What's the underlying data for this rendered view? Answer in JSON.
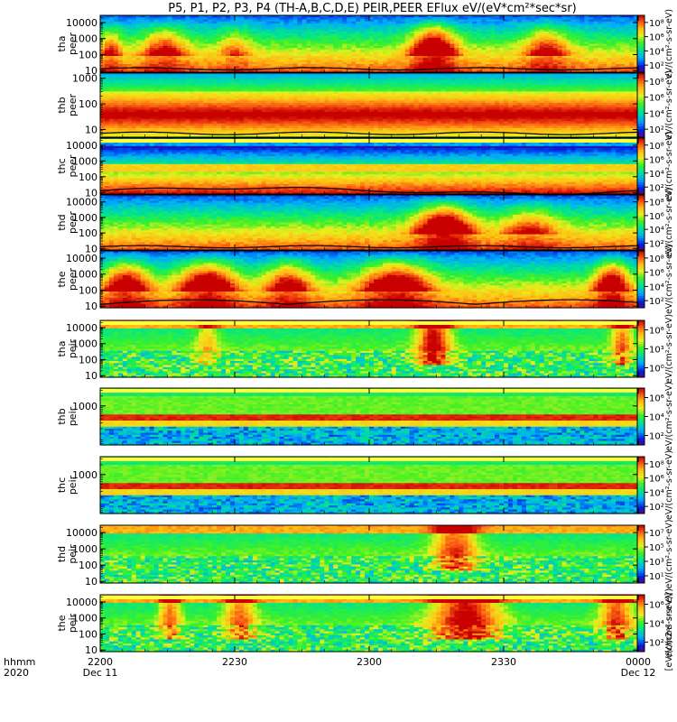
{
  "title": "P5, P1, P2, P3, P4 (TH-A,B,C,D,E) PEIR,PEER EFlux eV/(eV*cm²*sec*sr)",
  "chart_data": {
    "type": "heatmap",
    "title": "P5, P1, P2, P3, P4 (TH-A,B,C,D,E) PEIR,PEER EFlux eV/(eV*cm²*sec*sr)",
    "x_axis": {
      "label_rows": [
        "hhmm",
        "2020"
      ],
      "range": [
        "2020-12-11 22:00",
        "2020-12-12 00:00"
      ],
      "ticks": [
        {
          "hhmm": "2200",
          "date": "Dec 11"
        },
        {
          "hhmm": "2230",
          "date": ""
        },
        {
          "hhmm": "2300",
          "date": ""
        },
        {
          "hhmm": "2330",
          "date": ""
        },
        {
          "hhmm": "0000",
          "date": "Dec 12"
        }
      ]
    },
    "y_scale": "log",
    "colorbar_scale": "log",
    "colorbar_unit": "[eV/(cm2-s-sr-eV)]",
    "panels": [
      {
        "probe": "tha",
        "species": "peer",
        "ylabel": [
          "tha",
          "peer"
        ],
        "yticks": [
          "10",
          "100",
          "1000",
          "10000"
        ],
        "cbticks": [
          "10²",
          "10⁴",
          "10⁶",
          "10⁸"
        ],
        "cb_unit": "eV/(cm²-s-sr-eV)",
        "has_bound": true
      },
      {
        "probe": "thb",
        "species": "peer",
        "ylabel": [
          "thb",
          "peer"
        ],
        "yticks": [
          "10",
          "100",
          "1000"
        ],
        "cbticks": [
          "10²",
          "10⁴",
          "10⁶",
          "10⁸"
        ],
        "cb_unit": "eV/(cm²-s-sr-eV)",
        "has_bound": true
      },
      {
        "probe": "thc",
        "species": "peer",
        "ylabel": [
          "thc",
          "peer"
        ],
        "yticks": [
          "10",
          "100",
          "1000",
          "10000"
        ],
        "cbticks": [
          "10²",
          "10⁴",
          "10⁶",
          "10⁸"
        ],
        "cb_unit": "eV/(cm²-s-sr-eV)",
        "has_bound": true
      },
      {
        "probe": "thd",
        "species": "peer",
        "ylabel": [
          "thd",
          "peer"
        ],
        "yticks": [
          "10",
          "100",
          "1000",
          "10000"
        ],
        "cbticks": [
          "10²",
          "10⁴",
          "10⁶",
          "10⁸"
        ],
        "cb_unit": "eV/(cm²-s-sr-eV)",
        "has_bound": true
      },
      {
        "probe": "the",
        "species": "peer",
        "ylabel": [
          "the",
          "peer"
        ],
        "yticks": [
          "10",
          "100",
          "1000",
          "10000"
        ],
        "cbticks": [
          "10²",
          "10⁴",
          "10⁶",
          "10⁸"
        ],
        "cb_unit": "eV/(cm²-s-sr-eV)",
        "has_bound": true
      },
      {
        "probe": "tha",
        "species": "peir",
        "ylabel": [
          "tha",
          "peir"
        ],
        "yticks": [
          "10",
          "100",
          "1000",
          "10000"
        ],
        "cbticks": [
          "10⁰",
          "10³",
          "10⁶"
        ],
        "cb_unit": "eV/(cm²-s-sr-eV)",
        "has_bound": false
      },
      {
        "probe": "thb",
        "species": "peir",
        "ylabel": [
          "thb",
          "peir"
        ],
        "yticks": [
          "1000"
        ],
        "cbticks": [
          "10²",
          "10⁴",
          "10⁶"
        ],
        "cb_unit": "eV/(cm²-s-sr-eV)",
        "has_bound": false
      },
      {
        "probe": "thc",
        "species": "peir",
        "ylabel": [
          "thc",
          "peir"
        ],
        "yticks": [
          "1000"
        ],
        "cbticks": [
          "10²",
          "10⁴",
          "10⁶",
          "10⁸"
        ],
        "cb_unit": "eV/(cm²-s-sr-eV)",
        "has_bound": false
      },
      {
        "probe": "thd",
        "species": "peir",
        "ylabel": [
          "thd",
          "peir"
        ],
        "yticks": [
          "10",
          "100",
          "1000",
          "10000"
        ],
        "cbticks": [
          "10¹",
          "10³",
          "10⁵",
          "10⁷"
        ],
        "cb_unit": "eV/(cm²-s-sr-eV)",
        "has_bound": false
      },
      {
        "probe": "the",
        "species": "peir",
        "ylabel": [
          "the",
          "peir"
        ],
        "yticks": [
          "10",
          "100",
          "1000",
          "10000"
        ],
        "cbticks": [
          "10²",
          "10⁴",
          "10⁶"
        ],
        "cb_unit": "eV/(cm²-s-sr-eV)",
        "has_bound": false
      }
    ]
  }
}
